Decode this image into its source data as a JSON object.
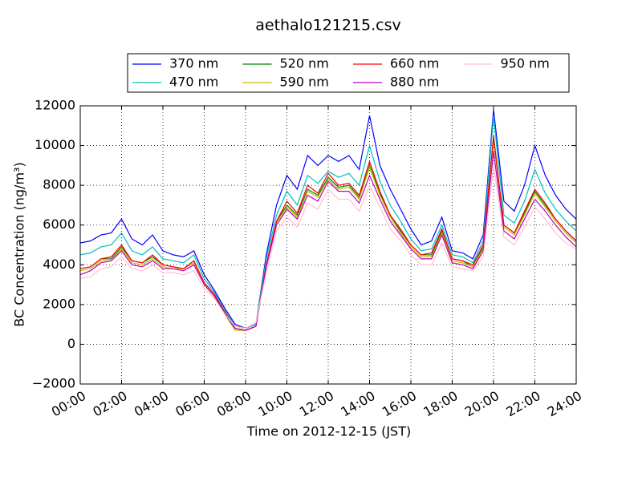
{
  "chart_data": {
    "type": "line",
    "title": "aethalo121215.csv",
    "x_label": "Time on 2012-12-15 (JST)",
    "y_label": "BC Concentration (ng/m³)",
    "x": [
      "00:00",
      "00:30",
      "01:00",
      "01:30",
      "02:00",
      "02:30",
      "03:00",
      "03:30",
      "04:00",
      "04:30",
      "05:00",
      "05:30",
      "06:00",
      "06:30",
      "07:00",
      "07:30",
      "08:00",
      "08:30",
      "09:00",
      "09:30",
      "10:00",
      "10:30",
      "11:00",
      "11:30",
      "12:00",
      "12:30",
      "13:00",
      "13:30",
      "14:00",
      "14:30",
      "15:00",
      "15:30",
      "16:00",
      "16:30",
      "17:00",
      "17:30",
      "18:00",
      "18:30",
      "19:00",
      "19:30",
      "20:00",
      "20:30",
      "21:00",
      "21:30",
      "22:00",
      "22:30",
      "23:00",
      "23:30",
      "24:00"
    ],
    "series": [
      {
        "name": "370 nm",
        "color": "#0000ff",
        "values": [
          5100,
          5200,
          5500,
          5600,
          6300,
          5300,
          5000,
          5500,
          4700,
          4500,
          4400,
          4700,
          3500,
          2700,
          1800,
          1000,
          800,
          1000,
          4500,
          7000,
          8500,
          7800,
          9500,
          9000,
          9500,
          9200,
          9500,
          8800,
          11500,
          9000,
          7800,
          6800,
          5800,
          5000,
          5200,
          6400,
          4700,
          4600,
          4300,
          5500,
          11800,
          7200,
          6700,
          8000,
          10000,
          8500,
          7500,
          6800,
          6300
        ]
      },
      {
        "name": "470 nm",
        "color": "#00bfbf",
        "values": [
          4500,
          4600,
          4900,
          5000,
          5600,
          4700,
          4500,
          4900,
          4300,
          4200,
          4100,
          4500,
          3300,
          2600,
          1700,
          900,
          800,
          1000,
          4300,
          6500,
          7700,
          7000,
          8500,
          8100,
          8700,
          8400,
          8600,
          8000,
          10000,
          8200,
          7000,
          6200,
          5300,
          4700,
          4800,
          6000,
          4500,
          4400,
          4100,
          5200,
          11500,
          6500,
          6100,
          7200,
          8800,
          7600,
          6800,
          6200,
          5700
        ]
      },
      {
        "name": "520 nm",
        "color": "#008000",
        "values": [
          3800,
          3900,
          4300,
          4300,
          4900,
          4200,
          4100,
          4400,
          4000,
          3900,
          3800,
          4200,
          3100,
          2500,
          1600,
          800,
          700,
          900,
          4000,
          6200,
          7000,
          6500,
          7800,
          7500,
          8400,
          7900,
          8000,
          7400,
          9000,
          7600,
          6500,
          5700,
          5000,
          4500,
          4500,
          5700,
          4300,
          4200,
          3900,
          4900,
          10500,
          6000,
          5600,
          6600,
          7700,
          7000,
          6300,
          5700,
          5200
        ]
      },
      {
        "name": "590 nm",
        "color": "#bfbf00",
        "values": [
          3700,
          3800,
          4200,
          4200,
          4800,
          4100,
          4000,
          4300,
          3900,
          3800,
          3800,
          4100,
          3000,
          2400,
          1500,
          700,
          700,
          900,
          3900,
          6100,
          6900,
          6400,
          7700,
          7400,
          8300,
          7800,
          7900,
          7300,
          8900,
          7500,
          6400,
          5600,
          4900,
          4400,
          4400,
          5600,
          4200,
          4100,
          3900,
          4800,
          10300,
          5900,
          5500,
          6500,
          7600,
          6900,
          6200,
          5600,
          5100
        ]
      },
      {
        "name": "660 nm",
        "color": "#ff0000",
        "values": [
          3800,
          3900,
          4300,
          4400,
          5000,
          4200,
          4100,
          4500,
          4000,
          3900,
          3800,
          4200,
          3100,
          2500,
          1600,
          800,
          700,
          900,
          4000,
          6200,
          7200,
          6600,
          8000,
          7600,
          8600,
          8000,
          8100,
          7500,
          9200,
          7700,
          6500,
          5800,
          5000,
          4500,
          4600,
          5800,
          4300,
          4200,
          4000,
          5000,
          10400,
          6000,
          5600,
          6700,
          7800,
          7100,
          6300,
          5700,
          5200
        ]
      },
      {
        "name": "880 nm",
        "color": "#bf00bf",
        "values": [
          3500,
          3700,
          4100,
          4200,
          4700,
          4000,
          3900,
          4200,
          3800,
          3800,
          3700,
          4000,
          3000,
          2400,
          1500,
          800,
          700,
          900,
          3900,
          6000,
          6800,
          6300,
          7500,
          7200,
          8200,
          7700,
          7700,
          7100,
          8500,
          7300,
          6200,
          5500,
          4800,
          4300,
          4300,
          5500,
          4100,
          4000,
          3800,
          4700,
          9700,
          5700,
          5300,
          6300,
          7300,
          6700,
          6000,
          5400,
          4900
        ]
      },
      {
        "name": "950 nm",
        "color": "#ffc0cb",
        "values": [
          3300,
          3400,
          3800,
          3900,
          4400,
          3800,
          3700,
          4000,
          3600,
          3600,
          3500,
          3700,
          2800,
          2300,
          1500,
          900,
          800,
          1100,
          3600,
          5700,
          6400,
          5900,
          7100,
          6800,
          7800,
          7300,
          7300,
          6700,
          8000,
          6900,
          5800,
          5200,
          4500,
          4000,
          4000,
          5100,
          3900,
          3800,
          3700,
          4400,
          9000,
          5400,
          5000,
          5900,
          6900,
          6300,
          5600,
          5100,
          4800
        ]
      }
    ],
    "xlim": [
      "00:00",
      "24:00"
    ],
    "xticks": [
      "00:00",
      "02:00",
      "04:00",
      "06:00",
      "08:00",
      "10:00",
      "12:00",
      "14:00",
      "16:00",
      "18:00",
      "20:00",
      "22:00",
      "24:00"
    ],
    "ylim": [
      -2000,
      12000
    ],
    "yticks": [
      {
        "value": -2000,
        "label": "−2000"
      },
      0,
      2000,
      4000,
      6000,
      8000,
      10000,
      12000
    ],
    "grid": true,
    "legend": "upper center"
  }
}
